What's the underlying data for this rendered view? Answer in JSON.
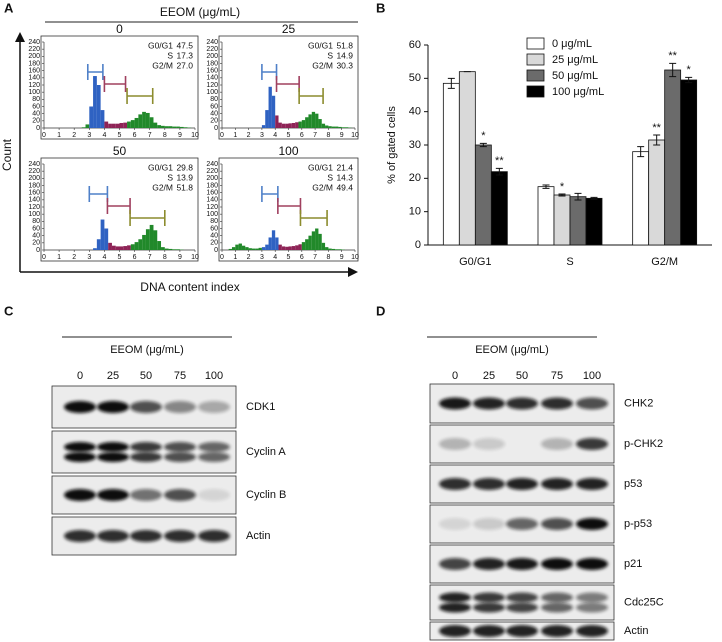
{
  "panel_labels": {
    "a": "A",
    "b": "B",
    "c": "C",
    "d": "D"
  },
  "chart_data": [
    {
      "type": "histogram-grid",
      "title": "EEOM (μg/mL)",
      "xlabel": "DNA content index",
      "ylabel": "Count",
      "xlim": [
        0,
        10
      ],
      "xticks": [
        0,
        1,
        2,
        3,
        4,
        5,
        6,
        7,
        8,
        9,
        10
      ],
      "ylim": [
        0,
        240
      ],
      "yticks": [
        0,
        20,
        40,
        60,
        80,
        100,
        120,
        140,
        160,
        180,
        200,
        220,
        240
      ],
      "bins": [
        0,
        0.25,
        0.5,
        0.75,
        1,
        1.25,
        1.5,
        1.75,
        2,
        2.25,
        2.5,
        2.75,
        3,
        3.25,
        3.5,
        3.75,
        4,
        4.25,
        4.5,
        4.75,
        5,
        5.25,
        5.5,
        5.75,
        6,
        6.25,
        6.5,
        6.75,
        7,
        7.25,
        7.5,
        7.75,
        8,
        8.25,
        8.5,
        8.75,
        9,
        9.25,
        9.5,
        9.75,
        10
      ],
      "gate_colors": [
        "#4f80c8",
        "#a0405f",
        "#8c8c2e"
      ],
      "bar_colors": [
        "#2f62c2",
        "#8e2356",
        "#21892a"
      ],
      "panels": [
        {
          "label": "0",
          "counts": [
            0,
            0,
            0,
            0,
            0,
            0,
            0,
            0,
            0,
            0,
            2,
            10,
            60,
            145,
            120,
            50,
            18,
            12,
            12,
            12,
            14,
            15,
            18,
            22,
            28,
            38,
            45,
            42,
            30,
            15,
            8,
            6,
            5,
            5,
            4,
            4,
            3,
            2,
            1,
            0
          ],
          "gates": [
            [
              2.9,
              3.9
            ],
            [
              4.0,
              5.4
            ],
            [
              5.5,
              7.2
            ]
          ],
          "stats": {
            "phases": [
              "G0/G1",
              "S",
              "G2/M"
            ],
            "values": [
              47.5,
              17.3,
              27.0
            ],
            "value_labels": [
              "47.5",
              "17.3",
              "27.0"
            ]
          }
        },
        {
          "label": "25",
          "counts": [
            0,
            0,
            0,
            0,
            0,
            0,
            0,
            0,
            0,
            0,
            0,
            0,
            8,
            50,
            115,
            90,
            35,
            15,
            12,
            12,
            13,
            14,
            16,
            18,
            22,
            30,
            38,
            45,
            40,
            25,
            12,
            7,
            5,
            4,
            4,
            3,
            2,
            2,
            1,
            0
          ],
          "gates": [
            [
              3.0,
              4.1
            ],
            [
              4.1,
              5.8
            ],
            [
              5.8,
              7.6
            ]
          ],
          "stats": {
            "phases": [
              "G0/G1",
              "S",
              "G2/M"
            ],
            "values": [
              51.8,
              14.9,
              30.3
            ],
            "value_labels": [
              "51.8",
              "14.9",
              "30.3"
            ]
          }
        },
        {
          "label": "50",
          "counts": [
            0,
            0,
            0,
            0,
            0,
            0,
            0,
            0,
            0,
            0,
            0,
            0,
            0,
            5,
            30,
            85,
            60,
            20,
            12,
            10,
            10,
            11,
            13,
            16,
            22,
            30,
            42,
            58,
            70,
            55,
            25,
            8,
            4,
            3,
            2,
            2,
            1,
            0,
            0,
            0
          ],
          "gates": [
            [
              3.0,
              4.2
            ],
            [
              4.2,
              5.7
            ],
            [
              5.7,
              8.0
            ]
          ],
          "stats": {
            "phases": [
              "G0/G1",
              "S",
              "G2/M"
            ],
            "values": [
              29.8,
              13.9,
              51.8
            ],
            "value_labels": [
              "29.8",
              "13.9",
              "51.8"
            ]
          }
        },
        {
          "label": "100",
          "counts": [
            0,
            0,
            3,
            8,
            15,
            18,
            12,
            8,
            5,
            4,
            4,
            6,
            8,
            15,
            35,
            55,
            35,
            15,
            10,
            9,
            10,
            11,
            13,
            16,
            22,
            30,
            40,
            52,
            60,
            45,
            20,
            8,
            4,
            3,
            2,
            2,
            1,
            0,
            0,
            0
          ],
          "gates": [
            [
              3.0,
              4.2
            ],
            [
              4.2,
              5.9
            ],
            [
              5.9,
              7.9
            ]
          ],
          "stats": {
            "phases": [
              "G0/G1",
              "S",
              "G2/M"
            ],
            "values": [
              21.4,
              14.3,
              49.4
            ],
            "value_labels": [
              "21.4",
              "14.3",
              "49.4"
            ]
          }
        }
      ]
    },
    {
      "type": "bar",
      "ylabel": "% of gated cells",
      "categories": [
        "G0/G1",
        "S",
        "G2/M"
      ],
      "ylim": [
        0,
        60
      ],
      "yticks": [
        0,
        10,
        20,
        30,
        40,
        50,
        60
      ],
      "series": [
        {
          "name": "0 μg/mL",
          "color": "#ffffff",
          "values": [
            48.5,
            17.5,
            28
          ],
          "errors": [
            1.5,
            0.5,
            1.5
          ],
          "significance": [
            null,
            null,
            null
          ]
        },
        {
          "name": "25 μg/mL",
          "color": "#d9d9d9",
          "values": [
            52,
            15,
            31.5
          ],
          "errors": [
            0,
            0.3,
            1.5
          ],
          "significance": [
            null,
            "*",
            "**"
          ]
        },
        {
          "name": "50 μg/mL",
          "color": "#6b6b6b",
          "values": [
            30,
            14.5,
            52.5
          ],
          "errors": [
            0.5,
            1,
            2
          ],
          "significance": [
            "*",
            null,
            "**"
          ]
        },
        {
          "name": "100 μg/mL",
          "color": "#000000",
          "values": [
            22,
            14,
            49.5
          ],
          "errors": [
            1,
            0.3,
            0.8
          ],
          "significance": [
            "**",
            null,
            "*"
          ]
        }
      ]
    }
  ],
  "blots": [
    {
      "title": "EEOM (μg/mL)",
      "lanes": [
        "0",
        "25",
        "50",
        "75",
        "100"
      ],
      "rows": [
        "CDK1",
        "Cyclin A",
        "Cyclin B",
        "Actin"
      ]
    },
    {
      "title": "EEOM (μg/mL)",
      "lanes": [
        "0",
        "25",
        "50",
        "75",
        "100"
      ],
      "rows": [
        "CHK2",
        "p-CHK2",
        "p53",
        "p-p53",
        "p21",
        "Cdc25C",
        "Actin"
      ]
    }
  ]
}
